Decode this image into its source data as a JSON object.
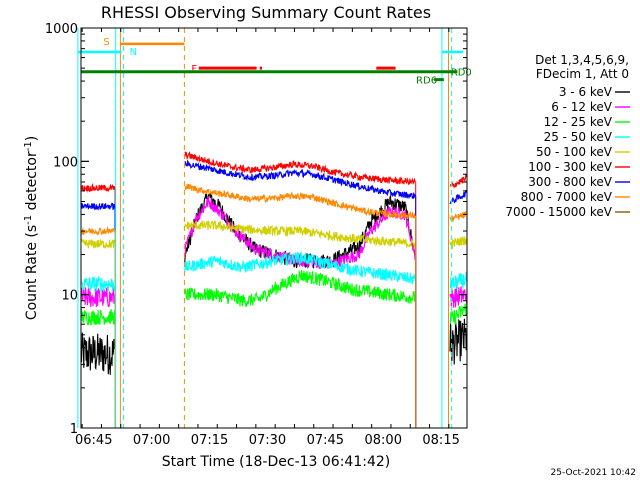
{
  "chart_data": {
    "type": "line",
    "title": "RHESSI Observing Summary Count Rates",
    "xlabel": "Start Time (18-Dec-13 06:41:42)",
    "ylabel": "Count Rate (s-1 detector-1)",
    "ylabel_parts": [
      "Count Rate (s",
      "-1",
      " detector",
      "-1",
      ")"
    ],
    "yscale": "log",
    "ylim": [
      1,
      1000
    ],
    "xlim_minutes": [
      0,
      100
    ],
    "y_ticks": [
      {
        "value": 1,
        "label": "1"
      },
      {
        "value": 10,
        "label": "10"
      },
      {
        "value": 100,
        "label": "100"
      },
      {
        "value": 1000,
        "label": "1000"
      }
    ],
    "x_ticks": [
      {
        "minute": 3.3,
        "label": "06:45"
      },
      {
        "minute": 18.3,
        "label": "07:00"
      },
      {
        "minute": 33.3,
        "label": "07:15"
      },
      {
        "minute": 48.3,
        "label": "07:30"
      },
      {
        "minute": 63.3,
        "label": "07:45"
      },
      {
        "minute": 78.3,
        "label": "08:00"
      },
      {
        "minute": 93.3,
        "label": "08:15"
      }
    ],
    "data_gaps_minutes": [
      [
        8.8,
        26.9
      ],
      [
        86.7,
        95.6
      ]
    ],
    "legend_header": [
      "Det 1,3,4,5,6,9,",
      "FDecim 1, Att 0"
    ],
    "series": [
      {
        "name": "3 - 6 keV",
        "color": "#000000",
        "baseline": [
          [
            0,
            3.6
          ],
          [
            9,
            3.6
          ],
          [
            27,
            20
          ],
          [
            30,
            38
          ],
          [
            33,
            55
          ],
          [
            36,
            45
          ],
          [
            40,
            30
          ],
          [
            45,
            22
          ],
          [
            55,
            18
          ],
          [
            65,
            18
          ],
          [
            72,
            23
          ],
          [
            75,
            35
          ],
          [
            80,
            50
          ],
          [
            84,
            45
          ],
          [
            86.5,
            20
          ],
          [
            96,
            4.2
          ],
          [
            100,
            4.8
          ]
        ]
      },
      {
        "name": "6 - 12 keV",
        "color": "#ff00ff",
        "baseline": [
          [
            0,
            9.5
          ],
          [
            9,
            9.5
          ],
          [
            27,
            22
          ],
          [
            30,
            38
          ],
          [
            33,
            50
          ],
          [
            36,
            42
          ],
          [
            40,
            30
          ],
          [
            45,
            22
          ],
          [
            55,
            18
          ],
          [
            65,
            17
          ],
          [
            72,
            20
          ],
          [
            75,
            30
          ],
          [
            80,
            42
          ],
          [
            84,
            40
          ],
          [
            86.5,
            20
          ],
          [
            96,
            9.5
          ],
          [
            100,
            10
          ]
        ]
      },
      {
        "name": "12 - 25 keV",
        "color": "#00ff00",
        "baseline": [
          [
            0,
            6.8
          ],
          [
            9,
            6.8
          ],
          [
            27,
            10
          ],
          [
            35,
            10
          ],
          [
            42,
            9
          ],
          [
            46,
            9.2
          ],
          [
            50,
            11
          ],
          [
            57,
            14
          ],
          [
            62,
            13
          ],
          [
            70,
            11
          ],
          [
            80,
            10
          ],
          [
            86.5,
            9.5
          ],
          [
            96,
            6.5
          ],
          [
            100,
            8
          ]
        ]
      },
      {
        "name": "25 - 50 keV",
        "color": "#00ffff",
        "baseline": [
          [
            0,
            12
          ],
          [
            9,
            12
          ],
          [
            27,
            16
          ],
          [
            35,
            18
          ],
          [
            42,
            16
          ],
          [
            50,
            18
          ],
          [
            57,
            19
          ],
          [
            64,
            17
          ],
          [
            72,
            15
          ],
          [
            80,
            14
          ],
          [
            86.5,
            13
          ],
          [
            96,
            12
          ],
          [
            100,
            13
          ]
        ]
      },
      {
        "name": "50 - 100 keV",
        "color": "#d0d000",
        "baseline": [
          [
            0,
            24
          ],
          [
            9,
            24
          ],
          [
            27,
            33
          ],
          [
            35,
            33
          ],
          [
            42,
            31
          ],
          [
            50,
            30
          ],
          [
            57,
            30
          ],
          [
            64,
            28
          ],
          [
            72,
            26
          ],
          [
            80,
            25
          ],
          [
            86.5,
            24
          ],
          [
            96,
            24
          ],
          [
            100,
            26
          ]
        ]
      },
      {
        "name": "100 - 300 keV",
        "color": "#ff0000",
        "baseline": [
          [
            0,
            63
          ],
          [
            9,
            63
          ],
          [
            27,
            112
          ],
          [
            32,
            102
          ],
          [
            38,
            92
          ],
          [
            44,
            86
          ],
          [
            50,
            90
          ],
          [
            55,
            95
          ],
          [
            60,
            92
          ],
          [
            66,
            82
          ],
          [
            74,
            75
          ],
          [
            80,
            72
          ],
          [
            86.5,
            70
          ],
          [
            96,
            65
          ],
          [
            100,
            75
          ]
        ]
      },
      {
        "name": "300 - 800 keV",
        "color": "#0000ff",
        "baseline": [
          [
            0,
            46
          ],
          [
            9,
            46
          ],
          [
            27,
            96
          ],
          [
            32,
            90
          ],
          [
            38,
            82
          ],
          [
            44,
            76
          ],
          [
            50,
            78
          ],
          [
            55,
            82
          ],
          [
            60,
            80
          ],
          [
            66,
            72
          ],
          [
            74,
            63
          ],
          [
            80,
            58
          ],
          [
            86.5,
            55
          ],
          [
            96,
            50
          ],
          [
            100,
            58
          ]
        ]
      },
      {
        "name": "800 - 7000 keV",
        "color": "#ff8800",
        "baseline": [
          [
            0,
            30
          ],
          [
            9,
            30
          ],
          [
            27,
            65
          ],
          [
            32,
            60
          ],
          [
            38,
            56
          ],
          [
            44,
            52
          ],
          [
            50,
            53
          ],
          [
            55,
            55
          ],
          [
            60,
            54
          ],
          [
            66,
            48
          ],
          [
            74,
            42
          ],
          [
            80,
            40
          ],
          [
            86.5,
            39
          ],
          [
            96,
            37
          ],
          [
            100,
            40
          ]
        ]
      },
      {
        "name": "7000 - 15000 keV",
        "color": "#8b5a00",
        "baseline": []
      }
    ],
    "flags": [
      {
        "label": "S",
        "color": "#ff8800",
        "bar": [
          10.2,
          26.8
        ],
        "y": 760
      },
      {
        "label": "N",
        "color": "#00ffff",
        "bar": [
          -1,
          10.5
        ],
        "y": 660
      },
      {
        "label": "F",
        "color": "#ff0000",
        "bar": [
          30.5,
          46.5
        ],
        "y": 500
      },
      {
        "label": "RD0",
        "color": "#008000",
        "bar": [
          -1,
          97.5
        ],
        "y": 470
      },
      {
        "label": "RD6",
        "color": "#008000",
        "bar": [
          91.5,
          94.0
        ],
        "y": 410
      }
    ],
    "stamp": "25-Oct-2021 10:42"
  }
}
